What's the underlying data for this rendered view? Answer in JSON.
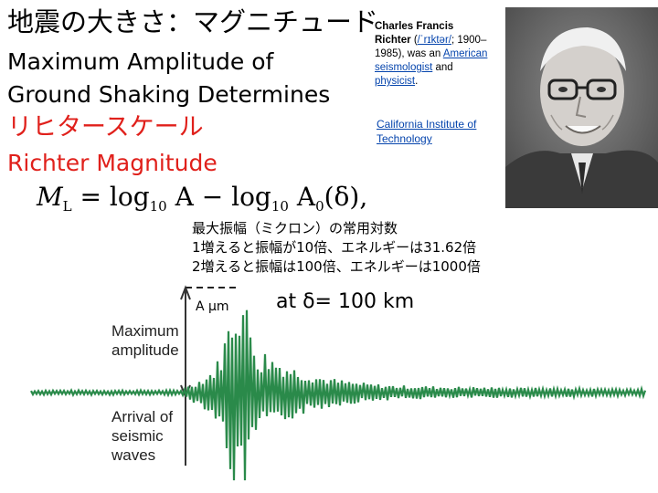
{
  "slide": {
    "title_jp": "地震の大きさ：マグニチュード",
    "title_en": "Maximum Amplitude of Ground Shaking Determines",
    "title_jp_red": "リヒタースケール",
    "title_en_red": "Richter Magnitude"
  },
  "bio": {
    "name_line1": "Charles Francis",
    "name_line2": "Richter",
    "ipa_link": "/ˈrɪktər/",
    "years_text": "; 1900–",
    "line3": "1985), was an ",
    "american_link": "American",
    "seismologist_link": "seismologist",
    "and_text": " and",
    "physicist_link": "physicist",
    "period": ".",
    "institution_line1": "California Institute of",
    "institution_line2": "Technology"
  },
  "formula": {
    "m": "M",
    "m_sub": "L",
    "eq": " = log",
    "sub10a": "10",
    "a": " A − log",
    "sub10b": "10",
    "a0": " A",
    "a0_sub": "0",
    "delta": "(δ),"
  },
  "description": {
    "line1": "最大振幅（ミクロン）の常用対数",
    "line2": "1増えると振幅が10倍、エネルギーは31.62倍",
    "line3": "2増えると振幅は100倍、エネルギーは1000倍"
  },
  "seismogram": {
    "amplitude_unit": "A μm",
    "distance": "at δ= 100 km",
    "max_label_1": "Maximum",
    "max_label_2": "amplitude",
    "arrival_label_1": "Arrival of",
    "arrival_label_2": "seismic",
    "arrival_label_3": "waves"
  }
}
